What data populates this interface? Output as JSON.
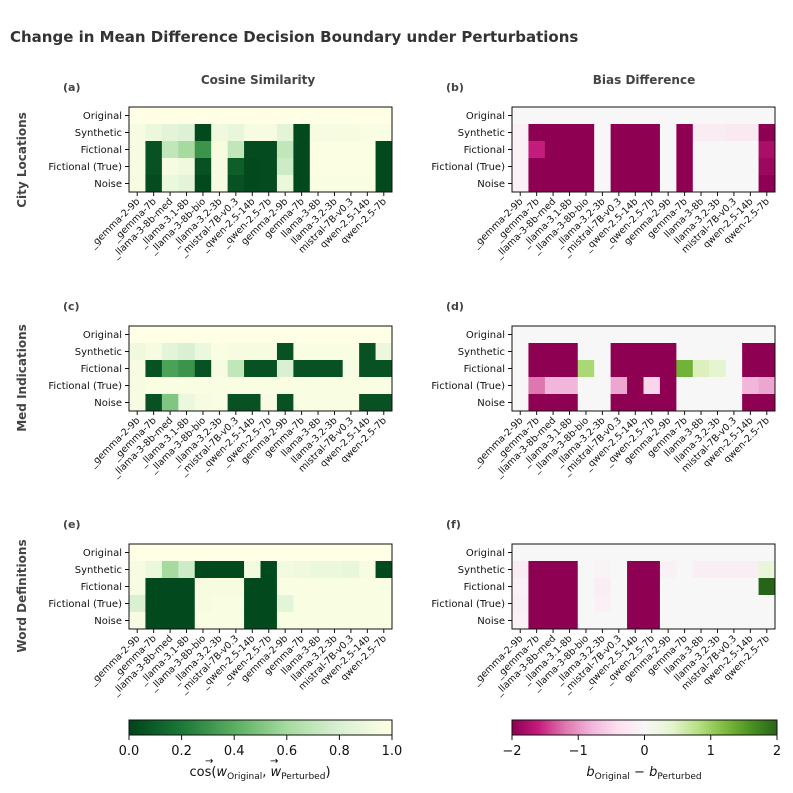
{
  "figure": {
    "title": "Change in Mean Difference Decision Boundary under Perturbations",
    "column_titles": [
      "Cosine Similarity",
      "Bias Difference"
    ],
    "row_titles": [
      "City Locations",
      "Med Indications",
      "Word Definitions"
    ],
    "panel_labels": [
      "(a)",
      "(b)",
      "(c)",
      "(d)",
      "(e)",
      "(f)"
    ]
  },
  "colorbars": {
    "cosine": {
      "ticks": [
        "0.0",
        "0.2",
        "0.4",
        "0.6",
        "0.8",
        "1.0"
      ],
      "label_main": "cos(",
      "label_w1": "w",
      "label_sub1": "Original",
      "label_sep": ", ",
      "label_w2": "w",
      "label_sub2": "Perturbed",
      "label_close": ")",
      "colors": [
        "#00441b",
        "#1b7837",
        "#5aae61",
        "#a6dba0",
        "#d9f0d3",
        "#ffffe5"
      ]
    },
    "bias": {
      "ticks": [
        "−2",
        "−1",
        "0",
        "1",
        "2"
      ],
      "label_b1": "b",
      "label_sub1": "Original",
      "label_minus": " − ",
      "label_b2": "b",
      "label_sub2": "Perturbed",
      "colors": [
        "#8e0152",
        "#c51b7d",
        "#de77ae",
        "#f1b6da",
        "#fde0ef",
        "#f7f7f7",
        "#e6f5d0",
        "#b8e186",
        "#7fbc41",
        "#4d9221",
        "#276419"
      ]
    }
  },
  "chart_data": [
    {
      "type": "heatmap",
      "panel": "(a)",
      "dataset": "City Locations",
      "metric": "Cosine Similarity",
      "vmin": 0,
      "vmax": 1,
      "rows": [
        "Original",
        "Synthetic",
        "Fictional",
        "Fictional (True)",
        "Noise"
      ],
      "columns": [
        "_gemma-2-9b",
        "_gemma-7b",
        "_llama-3-8b-med",
        "_llama-3.1-8b",
        "_llama-3-8b-bio",
        "_llama-3.2-3b",
        "_mistral-7B-v0.3",
        "_qwen-2.5-14b",
        "_qwen-2.5-7b",
        "gemma-2-9b",
        "gemma-7b",
        "llama-3-8b",
        "llama-3.2-3b",
        "mistral-7B-v0.3",
        "qwen-2.5-14b",
        "qwen-2.5-7b"
      ],
      "values": [
        [
          1.0,
          1.0,
          1.0,
          1.0,
          1.0,
          1.0,
          1.0,
          1.0,
          1.0,
          1.0,
          1.0,
          1.0,
          1.0,
          1.0,
          1.0,
          1.0
        ],
        [
          0.95,
          0.9,
          0.85,
          0.82,
          0.02,
          0.92,
          0.88,
          0.95,
          0.95,
          0.85,
          0.02,
          0.96,
          0.95,
          0.96,
          0.97,
          0.97
        ],
        [
          0.95,
          0.05,
          0.7,
          0.6,
          0.3,
          0.96,
          0.7,
          0.03,
          0.03,
          0.7,
          0.02,
          0.98,
          0.98,
          0.98,
          0.98,
          0.02
        ],
        [
          0.95,
          0.05,
          0.95,
          0.92,
          0.05,
          0.95,
          0.1,
          0.02,
          0.03,
          0.75,
          0.02,
          0.98,
          0.98,
          0.98,
          0.98,
          0.02
        ],
        [
          0.95,
          0.03,
          0.9,
          0.85,
          0.02,
          0.95,
          0.05,
          0.02,
          0.03,
          0.9,
          0.02,
          0.97,
          0.97,
          0.97,
          0.97,
          0.02
        ]
      ]
    },
    {
      "type": "heatmap",
      "panel": "(b)",
      "dataset": "City Locations",
      "metric": "Bias Difference",
      "vmin": -2,
      "vmax": 2,
      "rows": [
        "Original",
        "Synthetic",
        "Fictional",
        "Fictional (True)",
        "Noise"
      ],
      "columns": [
        "_gemma-2-9b",
        "_gemma-7b",
        "_llama-3-8b-med",
        "_llama-3.1-8b",
        "_llama-3-8b-bio",
        "_llama-3.2-3b",
        "_mistral-7B-v0.3",
        "_qwen-2.5-14b",
        "_qwen-2.5-7b",
        "gemma-2-9b",
        "gemma-7b",
        "llama-3-8b",
        "llama-3.2-3b",
        "mistral-7B-v0.3",
        "qwen-2.5-14b",
        "qwen-2.5-7b"
      ],
      "values": [
        [
          0,
          0,
          0,
          0,
          0,
          0,
          0,
          0,
          0,
          0,
          0,
          0,
          0,
          0,
          0,
          0
        ],
        [
          -0.1,
          -2,
          -2,
          -2,
          -2,
          0,
          -2,
          -2,
          -2,
          0,
          -2,
          -0.2,
          -0.2,
          -0.25,
          -0.25,
          -2
        ],
        [
          -0.1,
          -1.6,
          -2,
          -2,
          -2,
          0,
          -2,
          -2,
          -2,
          0,
          -2,
          0,
          0,
          0,
          0,
          -1.8
        ],
        [
          -0.1,
          -2,
          -2,
          -2,
          -2,
          0,
          -2,
          -2,
          -2,
          0,
          -2,
          0,
          0,
          0,
          0,
          -1.9
        ],
        [
          -0.1,
          -2,
          -2,
          -2,
          -2,
          0,
          -2,
          -2,
          -2,
          0,
          -2,
          0,
          0,
          0,
          0,
          -2
        ]
      ]
    },
    {
      "type": "heatmap",
      "panel": "(c)",
      "dataset": "Med Indications",
      "metric": "Cosine Similarity",
      "vmin": 0,
      "vmax": 1,
      "rows": [
        "Original",
        "Synthetic",
        "Fictional",
        "Fictional (True)",
        "Noise"
      ],
      "columns": [
        "_gemma-2-9b",
        "_gemma-7b",
        "_llama-3-8b-med",
        "_llama-3.1-8b",
        "_llama-3-8b-bio",
        "_llama-3.2-3b",
        "_mistral-7B-v0.3",
        "_qwen-2.5-14b",
        "_qwen-2.5-7b",
        "gemma-2-9b",
        "gemma-7b",
        "llama-3-8b",
        "llama-3.2-3b",
        "mistral-7B-v0.3",
        "qwen-2.5-14b",
        "qwen-2.5-7b"
      ],
      "values": [
        [
          1.0,
          1.0,
          1.0,
          1.0,
          1.0,
          1.0,
          1.0,
          1.0,
          1.0,
          1.0,
          1.0,
          1.0,
          1.0,
          1.0,
          1.0,
          1.0
        ],
        [
          0.92,
          0.95,
          0.85,
          0.8,
          0.9,
          0.97,
          0.95,
          0.96,
          0.96,
          0.05,
          0.97,
          0.97,
          0.97,
          0.97,
          0.05,
          0.9
        ],
        [
          0.95,
          0.05,
          0.35,
          0.3,
          0.05,
          0.95,
          0.7,
          0.05,
          0.05,
          0.8,
          0.05,
          0.05,
          0.05,
          0.95,
          0.05,
          0.05
        ],
        [
          0.95,
          0.97,
          0.97,
          0.97,
          0.97,
          0.97,
          0.97,
          0.97,
          0.97,
          0.97,
          0.97,
          0.97,
          0.97,
          0.97,
          0.97,
          0.97
        ],
        [
          0.95,
          0.05,
          0.5,
          0.9,
          0.95,
          0.97,
          0.05,
          0.05,
          0.95,
          0.05,
          0.97,
          0.97,
          0.97,
          0.97,
          0.05,
          0.05
        ]
      ]
    },
    {
      "type": "heatmap",
      "panel": "(d)",
      "dataset": "Med Indications",
      "metric": "Bias Difference",
      "vmin": -2,
      "vmax": 2,
      "rows": [
        "Original",
        "Synthetic",
        "Fictional",
        "Fictional (True)",
        "Noise"
      ],
      "columns": [
        "_gemma-2-9b",
        "_gemma-7b",
        "_llama-3-8b-med",
        "_llama-3.1-8b",
        "_llama-3-8b-bio",
        "_llama-3.2-3b",
        "_mistral-7B-v0.3",
        "_qwen-2.5-14b",
        "_qwen-2.5-7b",
        "gemma-2-9b",
        "gemma-7b",
        "llama-3-8b",
        "llama-3.2-3b",
        "mistral-7B-v0.3",
        "qwen-2.5-14b",
        "qwen-2.5-7b"
      ],
      "values": [
        [
          0,
          0,
          0,
          0,
          0,
          0,
          0,
          0,
          0,
          0,
          0,
          0,
          0,
          0,
          0,
          0
        ],
        [
          0,
          -2,
          -2,
          -2,
          0,
          0,
          -2,
          -2,
          -2,
          -2,
          0,
          0,
          0,
          0,
          -2,
          -2
        ],
        [
          0,
          -2,
          -2,
          -2,
          0.9,
          0,
          -2,
          -2,
          -2,
          -2,
          1.3,
          0.5,
          0.4,
          0,
          -2,
          -2
        ],
        [
          0,
          -1.2,
          -0.8,
          -0.8,
          0,
          0,
          -0.9,
          -2,
          -0.5,
          -2,
          0,
          0,
          0,
          0,
          -0.8,
          -0.9
        ],
        [
          0,
          -2,
          -2,
          -2,
          0,
          0,
          -2,
          -2,
          -2,
          -2,
          0,
          0,
          0,
          0,
          -2,
          -2
        ]
      ]
    },
    {
      "type": "heatmap",
      "panel": "(e)",
      "dataset": "Word Definitions",
      "metric": "Cosine Similarity",
      "vmin": 0,
      "vmax": 1,
      "rows": [
        "Original",
        "Synthetic",
        "Fictional",
        "Fictional (True)",
        "Noise"
      ],
      "columns": [
        "_gemma-2-9b",
        "_gemma-7b",
        "_llama-3-8b-med",
        "_llama-3.1-8b",
        "_llama-3-8b-bio",
        "_llama-3.2-3b",
        "_mistral-7B-v0.3",
        "_qwen-2.5-14b",
        "_qwen-2.5-7b",
        "gemma-2-9b",
        "gemma-7b",
        "llama-3-8b",
        "llama-3.2-3b",
        "mistral-7B-v0.3",
        "qwen-2.5-14b",
        "qwen-2.5-7b"
      ],
      "values": [
        [
          1.0,
          1.0,
          1.0,
          1.0,
          1.0,
          1.0,
          1.0,
          1.0,
          1.0,
          1.0,
          1.0,
          1.0,
          1.0,
          1.0,
          1.0,
          1.0
        ],
        [
          0.95,
          0.9,
          0.6,
          0.75,
          0.02,
          0.02,
          0.02,
          0.93,
          0.02,
          0.93,
          0.92,
          0.9,
          0.9,
          0.88,
          0.95,
          0.02
        ],
        [
          0.95,
          0.02,
          0.02,
          0.02,
          0.96,
          0.96,
          0.96,
          0.02,
          0.02,
          0.97,
          0.97,
          0.97,
          0.97,
          0.97,
          0.97,
          0.97
        ],
        [
          0.8,
          0.02,
          0.02,
          0.02,
          0.95,
          0.97,
          0.97,
          0.02,
          0.02,
          0.85,
          0.97,
          0.97,
          0.97,
          0.97,
          0.97,
          0.97
        ],
        [
          0.95,
          0.02,
          0.02,
          0.02,
          0.97,
          0.97,
          0.97,
          0.02,
          0.02,
          0.97,
          0.97,
          0.97,
          0.97,
          0.97,
          0.97,
          0.97
        ]
      ]
    },
    {
      "type": "heatmap",
      "panel": "(f)",
      "dataset": "Word Definitions",
      "metric": "Bias Difference",
      "vmin": -2,
      "vmax": 2,
      "rows": [
        "Original",
        "Synthetic",
        "Fictional",
        "Fictional (True)",
        "Noise"
      ],
      "columns": [
        "_gemma-2-9b",
        "_gemma-7b",
        "_llama-3-8b-med",
        "_llama-3.1-8b",
        "_llama-3-8b-bio",
        "_llama-3.2-3b",
        "_mistral-7B-v0.3",
        "_qwen-2.5-14b",
        "_qwen-2.5-7b",
        "gemma-2-9b",
        "gemma-7b",
        "llama-3-8b",
        "llama-3.2-3b",
        "mistral-7B-v0.3",
        "qwen-2.5-14b",
        "qwen-2.5-7b"
      ],
      "values": [
        [
          0,
          0,
          0,
          0,
          0,
          0,
          0,
          0,
          0,
          0,
          0,
          0,
          0,
          0,
          0,
          0
        ],
        [
          -0.2,
          -2,
          -2,
          -2,
          0,
          -0.05,
          0,
          -2,
          -2,
          -0.1,
          0,
          -0.15,
          -0.15,
          -0.15,
          -0.15,
          0.3
        ],
        [
          -0.1,
          -2,
          -2,
          -2,
          0,
          -0.15,
          0,
          -2,
          -2,
          0,
          0,
          0,
          0,
          0,
          0,
          2
        ],
        [
          -0.15,
          -2,
          -2,
          -2,
          0,
          -0.1,
          0,
          -2,
          -2,
          0,
          0,
          0,
          0,
          0,
          0,
          0
        ],
        [
          -0.1,
          -2,
          -2,
          -2,
          0,
          0,
          0,
          -2,
          -2,
          0,
          0,
          0,
          0,
          0,
          0,
          0
        ]
      ]
    }
  ]
}
